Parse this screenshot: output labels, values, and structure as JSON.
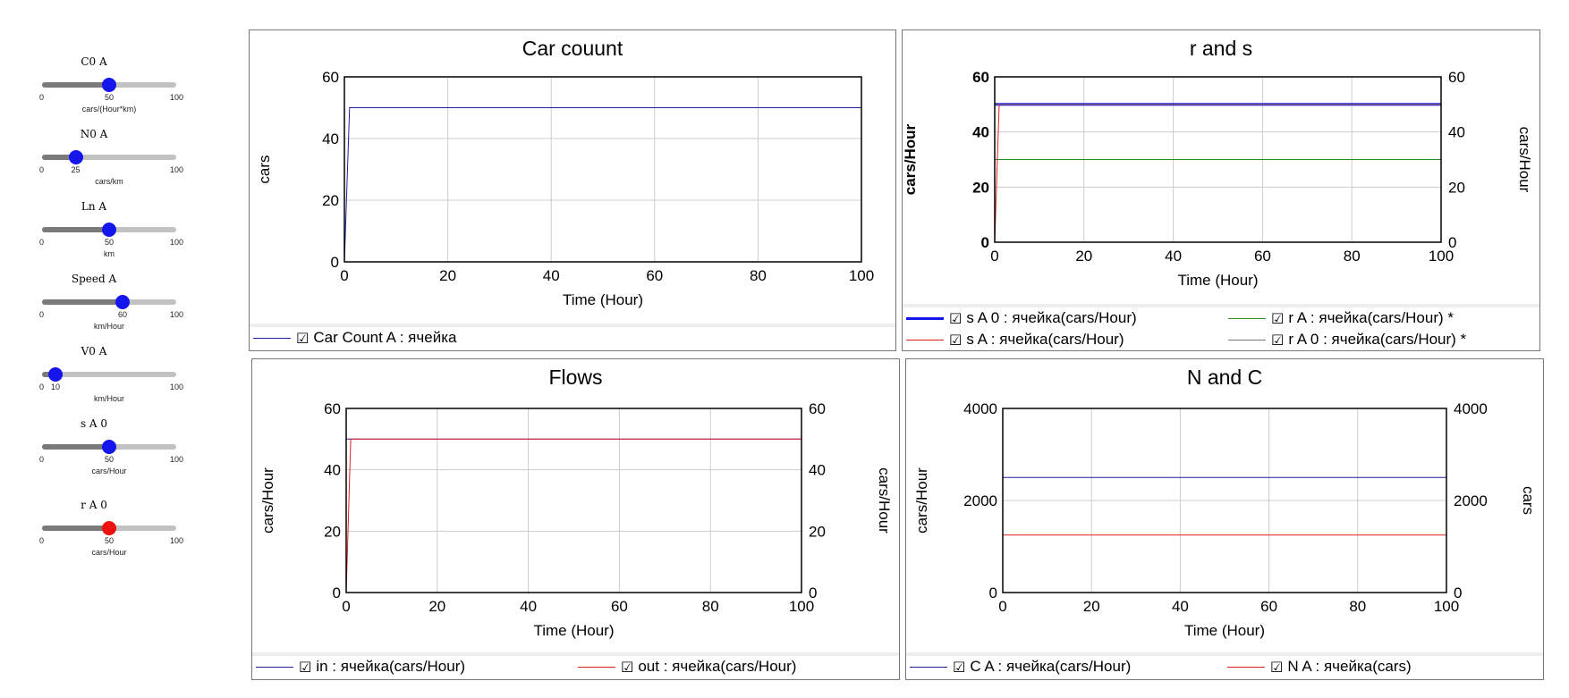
{
  "sliders": [
    {
      "label": "C0 A",
      "min": "0",
      "mid": "50",
      "max": "100",
      "unit": "cars/(Hour*km)",
      "value": 50,
      "range": [
        0,
        100
      ],
      "knob_color": "#1515ee"
    },
    {
      "label": "N0 A",
      "min": "0",
      "mid": "25",
      "max": "100",
      "unit": "cars/km",
      "value": 25,
      "range": [
        0,
        100
      ],
      "knob_color": "#1515ee"
    },
    {
      "label": "Ln A",
      "min": "0",
      "mid": "50",
      "max": "100",
      "unit": "km",
      "value": 50,
      "range": [
        0,
        100
      ],
      "knob_color": "#1515ee"
    },
    {
      "label": "Speed A",
      "min": "0",
      "mid": "60",
      "max": "100",
      "unit": "km/Hour",
      "value": 60,
      "range": [
        0,
        100
      ],
      "knob_color": "#1515ee"
    },
    {
      "label": "V0 A",
      "min": "0",
      "mid": "10",
      "max": "100",
      "unit": "km/Hour",
      "value": 10,
      "range": [
        0,
        100
      ],
      "knob_color": "#1515ee"
    },
    {
      "label": "s A 0",
      "min": "0",
      "mid": "50",
      "max": "100",
      "unit": "cars/Hour",
      "value": 50,
      "range": [
        0,
        100
      ],
      "knob_color": "#1515ee"
    },
    {
      "label": "r A 0",
      "min": "0",
      "mid": "50",
      "max": "100",
      "unit": "cars/Hour",
      "value": 50,
      "range": [
        0,
        100
      ],
      "knob_color": "#ee1111"
    }
  ],
  "chart_data": [
    {
      "type": "line",
      "title": "Car couunt",
      "xlabel": "Time (Hour)",
      "ylabel": "cars",
      "ylabel_right": "",
      "xlim": [
        0,
        100
      ],
      "ylim": [
        0,
        60
      ],
      "ylim_right": null,
      "xticks": [
        "0",
        "20",
        "40",
        "60",
        "80",
        "100"
      ],
      "yticks": [
        "0",
        "20",
        "40",
        "60"
      ],
      "yticks_right": [],
      "grid": true,
      "series": [
        {
          "legend": "Car Count A : ячейка",
          "color": "#1f1f9c",
          "width": 1,
          "points": [
            [
              0,
              0
            ],
            [
              1,
              50
            ],
            [
              100,
              50
            ]
          ]
        }
      ]
    },
    {
      "type": "line",
      "title": "r and s",
      "xlabel": "Time (Hour)",
      "ylabel": "cars/Hour",
      "ylabel_right": "cars/Hour",
      "xlim": [
        0,
        100
      ],
      "ylim": [
        0,
        60
      ],
      "ylim_right": [
        0,
        60
      ],
      "xticks": [
        "0",
        "20",
        "40",
        "60",
        "80",
        "100"
      ],
      "yticks": [
        "0",
        "20",
        "40",
        "60"
      ],
      "yticks_right": [
        "0",
        "20",
        "40",
        "60"
      ],
      "grid": true,
      "series": [
        {
          "legend": "s A 0 : ячейка(cars/Hour)",
          "color": "#1515ee",
          "width": 3,
          "points": [
            [
              0,
              50
            ],
            [
              100,
              50
            ]
          ]
        },
        {
          "legend": "r A : ячейка(cars/Hour) *",
          "color": "#2e8b2e",
          "width": 1,
          "points": [
            [
              0,
              30
            ],
            [
              100,
              30
            ]
          ]
        },
        {
          "legend": "s A : ячейка(cars/Hour)",
          "color": "#e02020",
          "width": 1,
          "points": [
            [
              0,
              0
            ],
            [
              1,
              50
            ],
            [
              100,
              50
            ]
          ]
        },
        {
          "legend": "r A 0 : ячейка(cars/Hour) *",
          "color": "#777777",
          "width": 1,
          "points": [
            [
              0,
              50
            ],
            [
              100,
              50
            ]
          ]
        }
      ]
    },
    {
      "type": "line",
      "title": "Flows",
      "xlabel": "Time (Hour)",
      "ylabel": "cars/Hour",
      "ylabel_right": "cars/Hour",
      "xlim": [
        0,
        100
      ],
      "ylim": [
        0,
        60
      ],
      "ylim_right": [
        0,
        60
      ],
      "xticks": [
        "0",
        "20",
        "40",
        "60",
        "80",
        "100"
      ],
      "yticks": [
        "0",
        "20",
        "40",
        "60"
      ],
      "yticks_right": [
        "0",
        "20",
        "40",
        "60"
      ],
      "grid": true,
      "series": [
        {
          "legend": "in : ячейка(cars/Hour)",
          "color": "#1f1f9c",
          "width": 1,
          "points": [
            [
              0,
              50
            ],
            [
              100,
              50
            ]
          ]
        },
        {
          "legend": "out : ячейка(cars/Hour)",
          "color": "#e02020",
          "width": 1,
          "points": [
            [
              0,
              0
            ],
            [
              1,
              50
            ],
            [
              100,
              50
            ]
          ]
        }
      ]
    },
    {
      "type": "line",
      "title": "N and C",
      "xlabel": "Time (Hour)",
      "ylabel": "cars/Hour",
      "ylabel_right": "cars",
      "xlim": [
        0,
        100
      ],
      "ylim": [
        0,
        4000
      ],
      "ylim_right": [
        0,
        4000
      ],
      "xticks": [
        "0",
        "20",
        "40",
        "60",
        "80",
        "100"
      ],
      "yticks": [
        "0",
        "2000",
        "4000"
      ],
      "yticks_right": [
        "0",
        "2000",
        "4000"
      ],
      "grid": true,
      "series": [
        {
          "legend": "C A : ячейка(cars/Hour)",
          "color": "#1f1f9c",
          "width": 1,
          "points": [
            [
              0,
              2500
            ],
            [
              100,
              2500
            ]
          ]
        },
        {
          "legend": "N A : ячейка(cars)",
          "color": "#e02020",
          "width": 1,
          "points": [
            [
              0,
              1250
            ],
            [
              100,
              1250
            ]
          ]
        }
      ]
    }
  ]
}
